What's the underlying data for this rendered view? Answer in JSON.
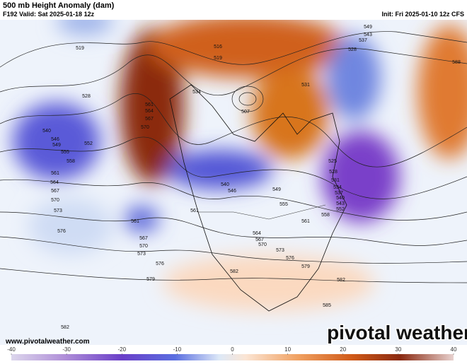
{
  "header": {
    "title": "500 mb Height Anomaly (dam)",
    "valid": "F192 Valid: Sat 2025-01-18 12z",
    "init": "Init: Fri 2025-01-10 12z CFS"
  },
  "footer": {
    "website": "www.pivotalweather.com",
    "watermark": "pivotal weather"
  },
  "colorbar": {
    "range": [
      -40,
      40
    ],
    "ticks": [
      -40,
      -30,
      -20,
      -10,
      0,
      10,
      20,
      30,
      40
    ]
  },
  "contour_labels": [
    "519",
    "516",
    "519",
    "549",
    "543",
    "537",
    "528",
    "588",
    "531",
    "534",
    "528",
    "540",
    "546",
    "549",
    "552",
    "555",
    "558",
    "561",
    "564",
    "567",
    "570",
    "573",
    "576",
    "561",
    "564",
    "567",
    "570",
    "507",
    "525",
    "528",
    "531",
    "534",
    "537",
    "540",
    "543",
    "552",
    "558",
    "561",
    "561",
    "561",
    "546",
    "540",
    "549",
    "555",
    "564",
    "567",
    "570",
    "573",
    "576",
    "579",
    "582",
    "585",
    "582",
    "567",
    "570",
    "573",
    "576",
    "579",
    "582"
  ]
}
